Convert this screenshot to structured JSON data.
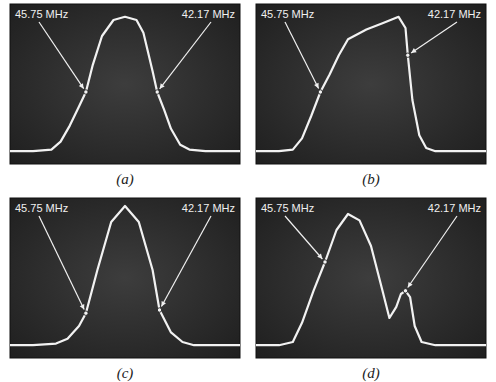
{
  "chart_data": [
    {
      "type": "line",
      "title": "(a)",
      "color": "#f2f2f2",
      "xlim": [
        0,
        100
      ],
      "ylim": [
        0,
        100
      ],
      "tick_labels": false,
      "x": [
        0,
        10,
        18,
        22,
        26,
        30,
        33,
        36,
        40,
        45,
        50,
        55,
        58,
        62,
        64,
        67,
        70,
        74,
        78,
        85,
        100
      ],
      "values": [
        8,
        8,
        9,
        14,
        24,
        36,
        45,
        62,
        80,
        90,
        92,
        90,
        82,
        58,
        45,
        34,
        22,
        12,
        9,
        8,
        8
      ],
      "annotations": [
        {
          "text": "45.75 MHz",
          "x": 33,
          "y": 45
        },
        {
          "text": "42.17 MHz",
          "x": 64,
          "y": 45
        }
      ]
    },
    {
      "type": "line",
      "title": "(b)",
      "color": "#f2f2f2",
      "xlim": [
        0,
        100
      ],
      "ylim": [
        0,
        100
      ],
      "tick_labels": false,
      "x": [
        0,
        10,
        16,
        20,
        24,
        28,
        32,
        36,
        40,
        48,
        55,
        62,
        65,
        66,
        68,
        71,
        74,
        78,
        85,
        100
      ],
      "values": [
        8,
        8,
        9,
        16,
        30,
        45,
        56,
        68,
        78,
        84,
        88,
        92,
        85,
        68,
        40,
        18,
        10,
        8,
        8,
        8
      ],
      "annotations": [
        {
          "text": "45.75 MHz",
          "x": 28,
          "y": 45
        },
        {
          "text": "42.17 MHz",
          "x": 66,
          "y": 68
        }
      ]
    },
    {
      "type": "line",
      "title": "(c)",
      "color": "#f2f2f2",
      "xlim": [
        0,
        100
      ],
      "ylim": [
        0,
        100
      ],
      "tick_labels": false,
      "x": [
        0,
        10,
        20,
        25,
        30,
        33,
        38,
        44,
        50,
        56,
        62,
        65,
        70,
        75,
        80,
        90,
        100
      ],
      "values": [
        8,
        8,
        9,
        12,
        20,
        28,
        55,
        85,
        95,
        85,
        55,
        30,
        16,
        10,
        8,
        8,
        8
      ],
      "annotations": [
        {
          "text": "45.75 MHz",
          "x": 33,
          "y": 28
        },
        {
          "text": "42.17 MHz",
          "x": 65,
          "y": 30
        }
      ]
    },
    {
      "type": "line",
      "title": "(d)",
      "color": "#f2f2f2",
      "xlim": [
        0,
        100
      ],
      "ylim": [
        0,
        100
      ],
      "tick_labels": false,
      "x": [
        0,
        10,
        16,
        20,
        25,
        30,
        35,
        40,
        45,
        50,
        55,
        58,
        61,
        63,
        65,
        67,
        69,
        72,
        78,
        90,
        100
      ],
      "values": [
        8,
        8,
        10,
        22,
        42,
        60,
        80,
        90,
        86,
        70,
        42,
        25,
        32,
        40,
        42,
        38,
        20,
        10,
        8,
        8,
        8
      ],
      "annotations": [
        {
          "text": "45.75 MHz",
          "x": 30,
          "y": 60
        },
        {
          "text": "42.17 MHz",
          "x": 65,
          "y": 42
        }
      ]
    }
  ]
}
